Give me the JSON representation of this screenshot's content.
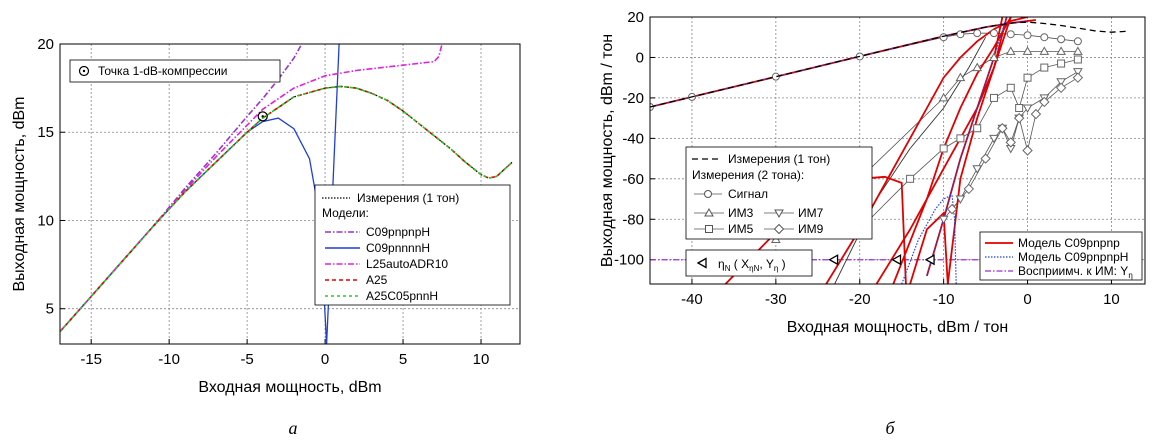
{
  "chart_data": [
    {
      "type": "line",
      "xlabel": "Входная мощность,  dBm",
      "ylabel": "Выходная мощность,  dBm",
      "xlim": [
        -17,
        12.5
      ],
      "ylim": [
        3,
        20
      ],
      "xticks": [
        "-15",
        "-10",
        "-5",
        "0",
        "5",
        "10"
      ],
      "yticks": [
        "5",
        "10",
        "15",
        "20"
      ],
      "grid": true,
      "legend_position": "lower-right",
      "caption": "а",
      "p1db_legend": "Точка 1-dB-компрессии",
      "legend_title_meas": "Измерения (1 тон)",
      "legend_title_models": "Модели:",
      "p1db_points": [
        [
          -4,
          15.9
        ]
      ],
      "series": [
        {
          "name": "Измерения (1 тон)",
          "color": "#000000",
          "dash": "1.5,1.5",
          "x": [
            -17,
            -15,
            -13,
            -11,
            -9,
            -7,
            -5,
            -4,
            -2,
            0,
            1,
            2,
            3,
            4,
            5,
            6,
            7,
            8,
            9,
            10,
            10.5,
            11,
            11.5,
            12
          ],
          "y": [
            3.7,
            5.7,
            7.7,
            9.7,
            11.6,
            13.3,
            15,
            15.8,
            17,
            17.5,
            17.6,
            17.5,
            17.2,
            16.8,
            16.2,
            15.5,
            14.8,
            14.1,
            13.3,
            12.6,
            12.4,
            12.5,
            12.9,
            13.3
          ]
        },
        {
          "name": "C09pnpnpH",
          "color": "#9932CC",
          "dash": "6,2,1.5,2",
          "x": [
            -17,
            -15,
            -13,
            -11,
            -9,
            -7,
            -5,
            -4,
            -3,
            -2,
            -1.5
          ],
          "y": [
            3.7,
            5.7,
            7.7,
            9.7,
            11.8,
            13.8,
            15.9,
            16.9,
            18,
            19.2,
            20
          ]
        },
        {
          "name": "C09pnnnnH",
          "color": "#1F3FD6",
          "dash": "",
          "x": [
            -17,
            -15,
            -13,
            -11,
            -9,
            -7,
            -5,
            -4,
            -3,
            -2,
            -1,
            -0.5,
            -0.2,
            0.1,
            0.3,
            0.5,
            0.7,
            0.9
          ],
          "y": [
            3.7,
            5.7,
            7.7,
            9.7,
            11.6,
            13.3,
            15,
            15.6,
            15.8,
            15.2,
            13.5,
            11,
            8,
            3,
            7,
            12,
            16,
            20
          ]
        },
        {
          "name": "L25autoADR10",
          "color": "#E020E0",
          "dash": "6,2,1.5,2",
          "x": [
            -17,
            -15,
            -13,
            -11,
            -9,
            -7,
            -5,
            -4,
            -2,
            0,
            2,
            4,
            6,
            7,
            7.3,
            7.5
          ],
          "y": [
            3.7,
            5.7,
            7.7,
            9.7,
            11.7,
            13.6,
            15.4,
            16.3,
            17.5,
            18.2,
            18.5,
            18.7,
            18.9,
            19,
            19.3,
            20
          ]
        },
        {
          "name": "A25",
          "color": "#E00000",
          "dash": "4,3",
          "x": [
            -17,
            -15,
            -13,
            -11,
            -9,
            -7,
            -5,
            -4,
            -2,
            0,
            1,
            2,
            3,
            4,
            5,
            6,
            7,
            8,
            9,
            10,
            10.5,
            11,
            11.5,
            12
          ],
          "y": [
            3.7,
            5.7,
            7.7,
            9.7,
            11.6,
            13.3,
            15,
            15.8,
            17,
            17.5,
            17.6,
            17.5,
            17.2,
            16.8,
            16.2,
            15.5,
            14.8,
            14.1,
            13.3,
            12.6,
            12.4,
            12.5,
            12.9,
            13.3
          ]
        },
        {
          "name": "A25C05pnnH",
          "color": "#22CC22",
          "dash": "3,3",
          "x": [
            -17,
            -15,
            -13,
            -11,
            -9,
            -7,
            -5,
            -4,
            -2,
            0,
            1,
            2,
            3,
            4,
            5,
            6,
            7,
            8,
            9,
            10,
            10.5,
            11,
            11.5,
            12
          ],
          "y": [
            3.7,
            5.7,
            7.7,
            9.7,
            11.6,
            13.3,
            15,
            15.8,
            17,
            17.5,
            17.6,
            17.5,
            17.2,
            16.8,
            16.2,
            15.5,
            14.8,
            14.1,
            13.3,
            12.6,
            12.4,
            12.5,
            12.9,
            13.3
          ]
        }
      ]
    },
    {
      "type": "line",
      "xlabel": "Входная мощность,  dBm / тон",
      "ylabel": "Выходная мощность,  dBm / тон",
      "xlim": [
        -45,
        14
      ],
      "ylim": [
        -112,
        20
      ],
      "xticks": [
        "-40",
        "-30",
        "-20",
        "-10",
        "0",
        "10"
      ],
      "yticks": [
        "-100",
        "-80",
        "-60",
        "-40",
        "-20",
        "0",
        "20"
      ],
      "grid": true,
      "caption": "б",
      "legend_meas_1tone": "Измерения (1 тон)",
      "legend_meas_2tone": "Измерения (2 тона):",
      "legend_signal": "Сигнал",
      "legend_im3": "ИМ3",
      "legend_im5": "ИМ5",
      "legend_im7": "ИМ7",
      "legend_im9": "ИМ9",
      "eta_label": "η",
      "eta_sub": "N",
      "eta_args": "( X",
      "eta_args_sub": "ηN",
      "eta_args2": ", Y",
      "eta_args2_sub": "η",
      "eta_close": ")",
      "model_a": "Модель C09pnpnp",
      "model_b": "Модель C09pnpnpH",
      "susc_label": "Восприимч. к ИМ: Y",
      "susc_sub": "η",
      "susc_level": -100,
      "eta_points": [
        [
          -33,
          -100
        ],
        [
          -23,
          -100
        ],
        [
          -15.5,
          -100
        ],
        [
          -11.5,
          -100
        ]
      ],
      "meas_1tone": {
        "x": [
          -45,
          -40,
          -30,
          -20,
          -10,
          -5,
          -2,
          0,
          2,
          4,
          6,
          8,
          10,
          12
        ],
        "y": [
          -24.5,
          -19.5,
          -9.5,
          0.5,
          10.5,
          15,
          17,
          17.5,
          16.8,
          15.8,
          14.5,
          13.2,
          12.5,
          13
        ]
      },
      "meas_signal": {
        "x": [
          -45,
          -40,
          -30,
          -20,
          -10,
          -8,
          -6,
          -4,
          -2,
          0,
          2,
          4,
          6
        ],
        "y": [
          -24.5,
          -19.5,
          -9.5,
          0.5,
          10,
          11.5,
          12,
          12,
          11.5,
          11,
          10,
          9,
          8
        ]
      },
      "meas_im3": {
        "x": [
          -30,
          -20,
          -10,
          -8,
          -6,
          -4,
          -2,
          0,
          2,
          4,
          6
        ],
        "y": [
          -90,
          -60,
          -20,
          -10,
          -5,
          0,
          3,
          3,
          3,
          3,
          3
        ]
      },
      "meas_im5": {
        "x": [
          -20,
          -14,
          -10,
          -8,
          -6,
          -4,
          -2,
          -1,
          0,
          2,
          4,
          6
        ],
        "y": [
          -85,
          -60,
          -45,
          -40,
          -35,
          -20,
          -15,
          -25,
          -10,
          -5,
          -3,
          -1
        ]
      },
      "meas_im7": {
        "x": [
          -10,
          -8,
          -6,
          -4,
          -3,
          -2,
          -1,
          0,
          2,
          4,
          6
        ],
        "y": [
          -80,
          -70,
          -55,
          -40,
          -35,
          -45,
          -30,
          -25,
          -20,
          -12,
          -7
        ]
      },
      "meas_im9": {
        "x": [
          -9,
          -7,
          -5,
          -3,
          -2,
          -1,
          0,
          1,
          2,
          4,
          6
        ],
        "y": [
          -75,
          -65,
          -50,
          -35,
          -42,
          -30,
          -46,
          -28,
          -22,
          -15,
          -10
        ]
      },
      "model_a_curves": [
        {
          "x": [
            -45,
            -40,
            -30,
            -20,
            -10,
            -5,
            -2,
            0,
            1
          ],
          "y": [
            -24.5,
            -19.5,
            -9.5,
            0.5,
            10.5,
            15,
            17,
            18,
            18.5
          ]
        },
        {
          "x": [
            -36,
            -32,
            -28,
            -24,
            -20,
            -17,
            -15,
            -14.5
          ],
          "y": [
            -112,
            -95,
            -78,
            -65,
            -60,
            -59,
            -62,
            -112
          ]
        },
        {
          "x": [
            -24,
            -20,
            -16,
            -12,
            -10,
            -8,
            -6,
            -4,
            -2,
            0
          ],
          "y": [
            -112,
            -85,
            -55,
            -25,
            -10,
            0,
            8,
            14,
            18,
            20
          ]
        },
        {
          "x": [
            -16,
            -12,
            -10,
            -8,
            -6,
            -4,
            -2
          ],
          "y": [
            -112,
            -70,
            -45,
            -25,
            -8,
            5,
            20
          ]
        },
        {
          "x": [
            -12,
            -10,
            -8,
            -6,
            -4,
            -3
          ],
          "y": [
            -108,
            -80,
            -50,
            -25,
            0,
            20
          ]
        },
        {
          "x": [
            -14,
            -12,
            -10,
            -9.5
          ],
          "y": [
            -112,
            -85,
            -77,
            -112
          ]
        },
        {
          "x": [
            -9.5,
            -8,
            -6,
            -4,
            -2.5
          ],
          "y": [
            -112,
            -60,
            -30,
            -5,
            20
          ]
        },
        {
          "x": [
            -18,
            -14,
            -10,
            -6,
            -4,
            -2
          ],
          "y": [
            -112,
            -85,
            -55,
            -25,
            -5,
            20
          ]
        }
      ],
      "model_b_curves": [
        {
          "x": [
            -45,
            -40,
            -30,
            -20,
            -10,
            -5,
            -2,
            0
          ],
          "y": [
            -24.5,
            -19.5,
            -9.5,
            0.5,
            10.5,
            15,
            17,
            18
          ]
        },
        {
          "x": [
            -15,
            -13,
            -11,
            -10,
            -9,
            -8.7,
            -8.5
          ],
          "y": [
            -112,
            -90,
            -75,
            -70,
            -68,
            -80,
            -112
          ]
        },
        {
          "x": [
            -12,
            -10,
            -8,
            -6,
            -4,
            -2.5
          ],
          "y": [
            -108,
            -80,
            -50,
            -25,
            0,
            20
          ]
        }
      ],
      "thin_black_curves": [
        {
          "x": [
            -23,
            -18,
            -14,
            -10,
            -7,
            -5
          ],
          "y": [
            -112,
            -70,
            -45,
            -25,
            -5,
            10
          ]
        }
      ]
    }
  ]
}
